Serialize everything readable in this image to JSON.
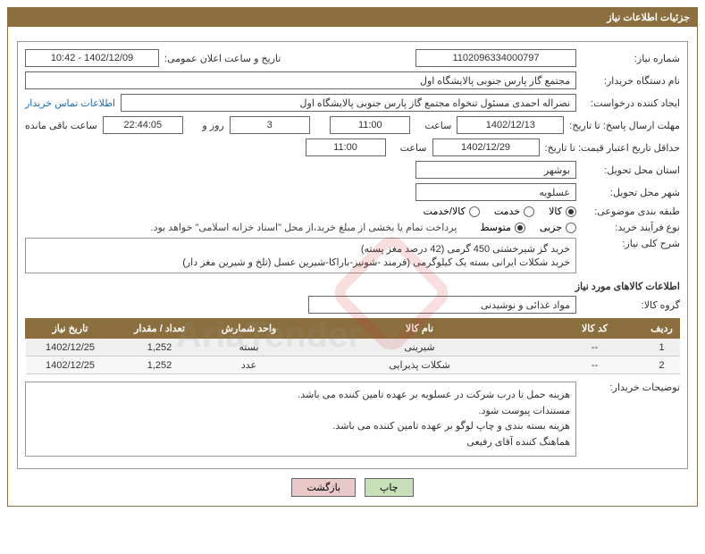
{
  "header": {
    "title": "جزئیات اطلاعات نیاز"
  },
  "form": {
    "need_number_label": "شماره نیاز:",
    "need_number": "1102096334000797",
    "announce_label": "تاریخ و ساعت اعلان عمومی:",
    "announce_value": "1402/12/09 - 10:42",
    "buyer_org_label": "نام دستگاه خریدار:",
    "buyer_org": "مجتمع گاز پارس جنوبی  پالایشگاه اول",
    "requester_label": "ایجاد کننده درخواست:",
    "requester": "نصراله احمدی مسئول تنخواه مجتمع گاز پارس جنوبی  پالایشگاه اول",
    "contact_link": "اطلاعات تماس خریدار",
    "deadline_label": "مهلت ارسال پاسخ: تا تاریخ:",
    "deadline_date": "1402/12/13",
    "hour_label": "ساعت",
    "deadline_hour": "11:00",
    "days_label": "روز و",
    "days_value": "3",
    "remaining_label": "ساعت باقی مانده",
    "remaining_time": "22:44:05",
    "validity_label": "حداقل تاریخ اعتبار قیمت: تا تاریخ:",
    "validity_date": "1402/12/29",
    "validity_hour": "11:00",
    "province_label": "استان محل تحویل:",
    "province": "بوشهر",
    "city_label": "شهر محل تحویل:",
    "city": "عسلویه",
    "category_label": "طبقه بندی موضوعی:",
    "cat_options": {
      "goods": "کالا",
      "service": "خدمت",
      "goods_service": "کالا/خدمت"
    },
    "cat_selected": "goods",
    "buy_type_label": "نوع فرآیند خرید:",
    "buy_options": {
      "minor": "جزیی",
      "medium": "متوسط"
    },
    "buy_selected": "medium",
    "buy_note": "پرداخت تمام یا بخشی از مبلغ خرید،از محل \"اسناد خزانه اسلامی\" خواهد بود.",
    "general_desc_label": "شرح کلی نیاز:",
    "general_desc_line1": "خرید گز شیرخشتی 450 گرمی (42 درصد مغز پسته)",
    "general_desc_line2": "خرید شکلات ایرانی بسته یک کیلوگرمی (فرمند -شونیز-باراکا-شیرین عسل (تلخ و شیرین مغز دار)",
    "goods_info_title": "اطلاعات کالاهای مورد نیاز",
    "goods_group_label": "گروه کالا:",
    "goods_group": "مواد غذائی و نوشیدنی",
    "buyer_notes_label": "توضیحات خریدار:",
    "buyer_notes_1": "هزینه حمل تا درب شرکت در عسلویه بر عهده تامین کننده می باشد.",
    "buyer_notes_2": "مستندات پیوست شود.",
    "buyer_notes_3": "هزینه بسته بندی و چاپ لوگو بر عهده تامین کننده می باشد.",
    "buyer_notes_4": "هماهنگ کننده آقای رفیعی"
  },
  "table": {
    "headers": {
      "row": "ردیف",
      "code": "کد کالا",
      "name": "نام کالا",
      "unit": "واحد شمارش",
      "qty": "تعداد / مقدار",
      "date": "تاریخ نیاز"
    },
    "rows": [
      {
        "row": "1",
        "code": "--",
        "name": "شیرینی",
        "unit": "بسته",
        "qty": "1,252",
        "date": "1402/12/25"
      },
      {
        "row": "2",
        "code": "--",
        "name": "شکلات پذیرایی",
        "unit": "عدد",
        "qty": "1,252",
        "date": "1402/12/25"
      }
    ]
  },
  "buttons": {
    "print": "چاپ",
    "back": "بازگشت"
  },
  "colors": {
    "brand": "#8b6f3e",
    "link": "#1a6cc7",
    "print_bg": "#c8e0b8",
    "back_bg": "#e8c8c8"
  }
}
